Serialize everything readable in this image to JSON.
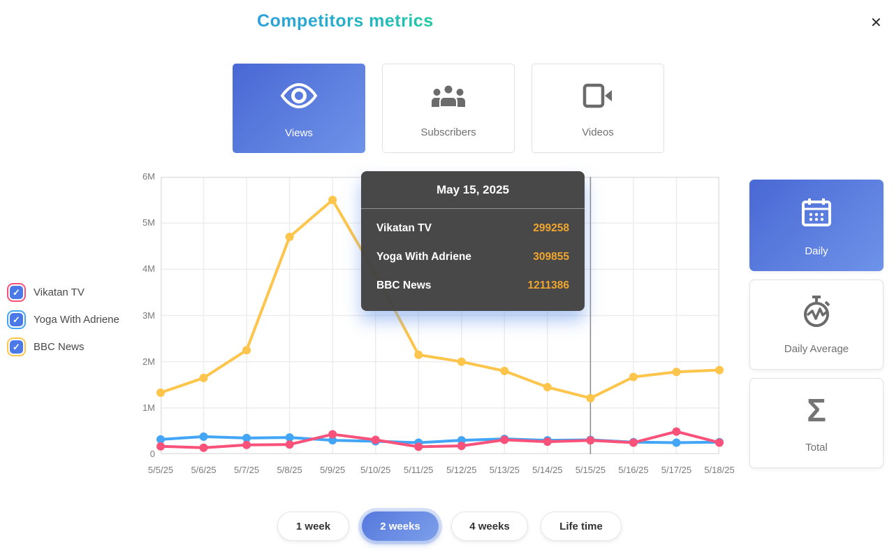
{
  "icons": {
    "close": "✕",
    "check": "✓",
    "sigma": "Σ"
  },
  "colors": {
    "accent_gradient_start": "#4968D4",
    "accent_gradient_end": "#6E93E9",
    "title_gradient_start": "#2CA0DB",
    "title_gradient_end": "#1FC9A4",
    "checkbox_blue": "#4B79E8",
    "tooltip_bg": "#424242",
    "tooltip_value": "#F0A62F"
  },
  "header": {
    "title": "Competitors metrics"
  },
  "metric_tabs": [
    {
      "label": "Views",
      "icon": "eye-icon",
      "selected": true
    },
    {
      "label": "Subscribers",
      "icon": "subscribers-icon",
      "selected": false
    },
    {
      "label": "Videos",
      "icon": "video-camera-icon",
      "selected": false
    }
  ],
  "legend": {
    "items": [
      {
        "label": "Vikatan TV",
        "color": "#F8527B",
        "checked": true
      },
      {
        "label": "Yoga With Adriene",
        "color": "#42A5F5",
        "checked": true
      },
      {
        "label": "BBC News",
        "color": "#FDC54B",
        "checked": true
      }
    ]
  },
  "tooltip": {
    "date": "May 15, 2025",
    "value_color": "#F0A62F",
    "rows": [
      {
        "label": "Vikatan TV",
        "value": "299258"
      },
      {
        "label": "Yoga With Adriene",
        "value": "309855"
      },
      {
        "label": "BBC News",
        "value": "1211386"
      }
    ]
  },
  "mode_buttons": [
    {
      "label": "Daily",
      "selected": true
    },
    {
      "label": "Daily Average",
      "selected": false
    },
    {
      "label": "Total",
      "selected": false
    }
  ],
  "range_buttons": [
    {
      "label": "1 week",
      "selected": false
    },
    {
      "label": "2 weeks",
      "selected": true
    },
    {
      "label": "4 weeks",
      "selected": false
    },
    {
      "label": "Life time",
      "selected": false
    }
  ],
  "chart_data": {
    "type": "line",
    "x": [
      "5/5/25",
      "5/6/25",
      "5/7/25",
      "5/8/25",
      "5/9/25",
      "5/10/25",
      "5/11/25",
      "5/12/25",
      "5/13/25",
      "5/14/25",
      "5/15/25",
      "5/16/25",
      "5/17/25",
      "5/18/25"
    ],
    "series": [
      {
        "name": "Vikatan TV",
        "color": "#F8527B",
        "values": [
          170000,
          140000,
          200000,
          210000,
          430000,
          310000,
          160000,
          180000,
          310000,
          270000,
          299258,
          250000,
          490000,
          250000
        ]
      },
      {
        "name": "Yoga With Adriene",
        "color": "#42A5F5",
        "values": [
          320000,
          380000,
          350000,
          360000,
          300000,
          280000,
          250000,
          300000,
          330000,
          300000,
          309855,
          260000,
          250000,
          260000
        ]
      },
      {
        "name": "BBC News",
        "color": "#FDC54B",
        "values": [
          1330000,
          1650000,
          2250000,
          4700000,
          5500000,
          3900000,
          2150000,
          2000000,
          1800000,
          1450000,
          1211386,
          1670000,
          1780000,
          1820000
        ]
      }
    ],
    "ylim": [
      0,
      6000000
    ],
    "yticks": [
      "0",
      "1M",
      "2M",
      "3M",
      "4M",
      "5M",
      "6M"
    ],
    "grid": true,
    "legend_position": "left",
    "crosshair_x": "5/15/25"
  }
}
